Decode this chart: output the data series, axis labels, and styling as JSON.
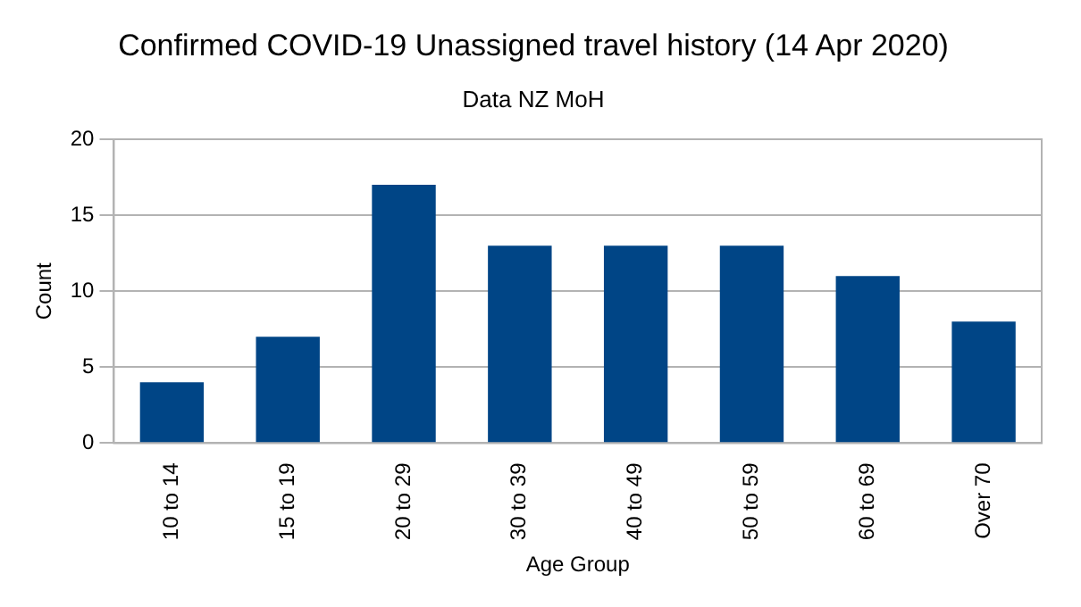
{
  "chart_data": {
    "type": "bar",
    "title": "Confirmed COVID-19 Unassigned travel history (14 Apr 2020)",
    "subtitle": "Data NZ MoH",
    "xlabel": "Age Group",
    "ylabel": "Count",
    "categories": [
      "10 to 14",
      "15 to 19",
      "20 to 29",
      "30 to 39",
      "40 to 49",
      "50 to 59",
      "60 to 69",
      "Over 70"
    ],
    "values": [
      4,
      7,
      17,
      13,
      13,
      13,
      11,
      8
    ],
    "color": "#004586",
    "ylim": [
      0,
      20
    ],
    "yticks": [
      0,
      5,
      10,
      15,
      20
    ],
    "grid": "y"
  }
}
